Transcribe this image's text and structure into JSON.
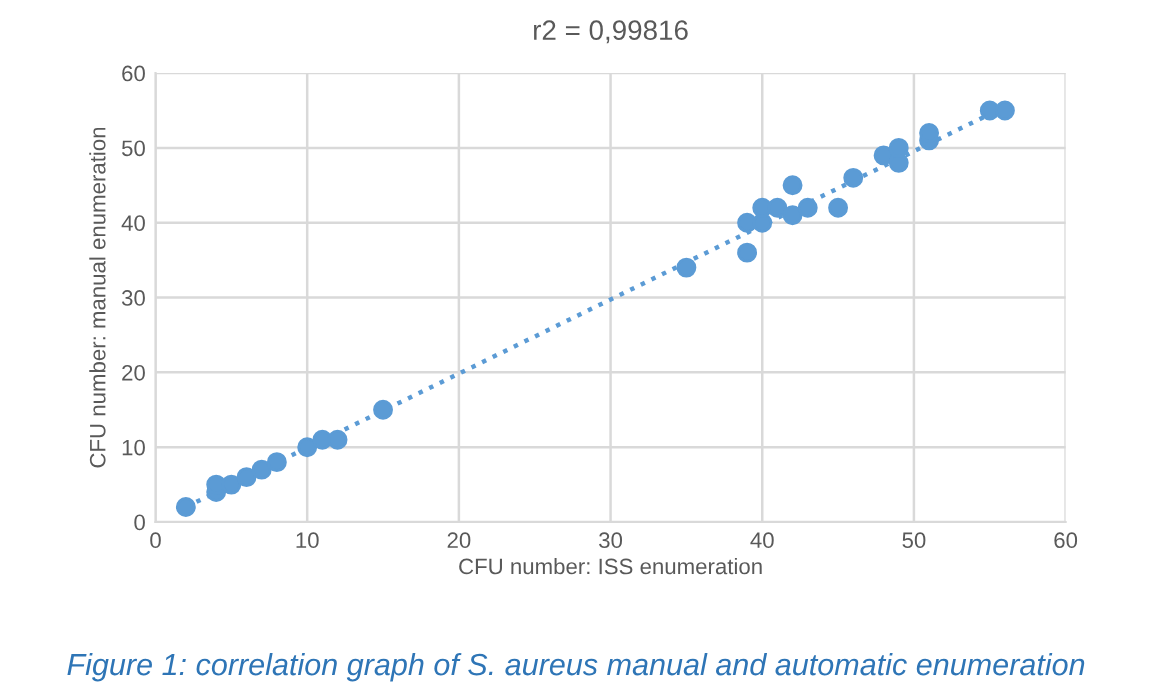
{
  "chart_data": {
    "type": "scatter",
    "title": "r2 = 0,99816",
    "xlabel": "CFU number: ISS enumeration",
    "ylabel": "CFU number: manual enumeration",
    "annotations": [
      "Figure 1: correlation graph of S. aureus manual and automatic enumeration"
    ],
    "series": [
      {
        "color": "#5b9bd5",
        "marker": "circle",
        "x": [
          2,
          4,
          4,
          5,
          6,
          7,
          8,
          10,
          11,
          12,
          15,
          35,
          39,
          39,
          40,
          40,
          41,
          42,
          42,
          43,
          45,
          46,
          48,
          49,
          49,
          51,
          51,
          55,
          56
        ],
        "values": [
          2,
          4,
          5,
          5,
          6,
          7,
          8,
          10,
          11,
          11,
          15,
          34,
          36,
          40,
          40,
          42,
          42,
          41,
          45,
          42,
          42,
          46,
          49,
          48,
          50,
          51,
          52,
          55,
          55
        ]
      },
      {
        "type": "line",
        "color": "#5b9bd5",
        "line_style": "dotted",
        "marker": "none",
        "x": [
          2,
          56
        ],
        "values": [
          2,
          55.5
        ]
      }
    ],
    "xlim": [
      0,
      60
    ],
    "ylim": [
      0,
      60
    ],
    "xticks": [
      0,
      10,
      20,
      30,
      40,
      50,
      60
    ],
    "yticks": [
      0,
      10,
      20,
      30,
      40,
      50,
      60
    ],
    "grid": true
  }
}
